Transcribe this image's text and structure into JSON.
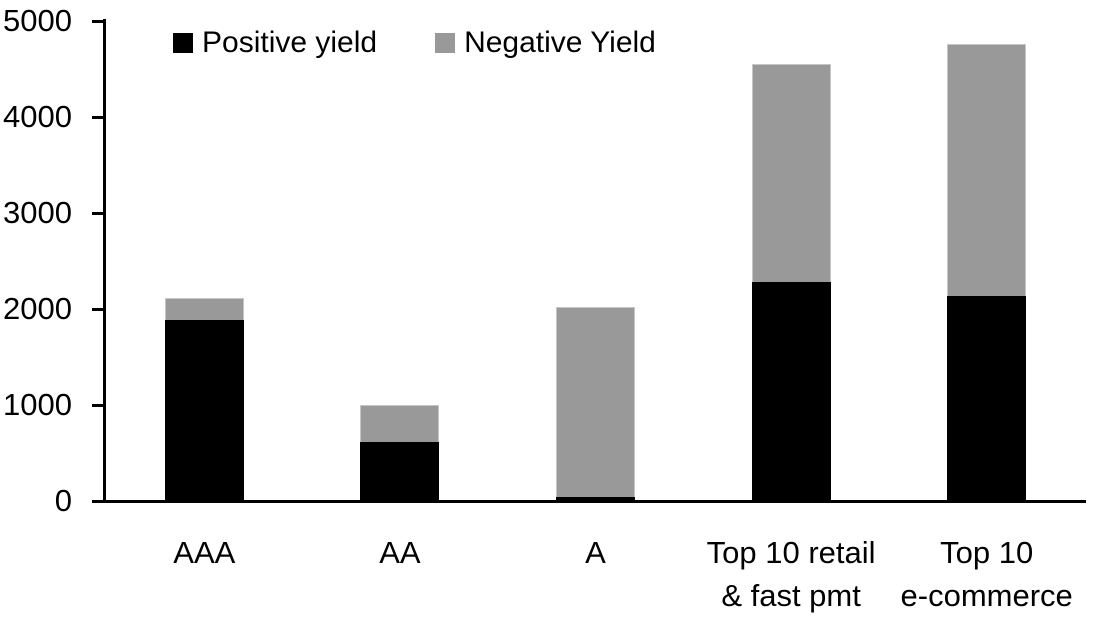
{
  "chart_data": {
    "type": "bar",
    "stacked": true,
    "categories": [
      "AAA",
      "AA",
      "A",
      "Top 10 retail\n& fast pmt",
      "Top 10\ne-commerce"
    ],
    "series": [
      {
        "name": "Positive yield",
        "color": "#000000",
        "values": [
          1890,
          610,
          40,
          2280,
          2140
        ]
      },
      {
        "name": "Negative Yield",
        "color": "#999999",
        "values": [
          220,
          390,
          1980,
          2270,
          2620
        ]
      }
    ],
    "totals": [
      2110,
      1000,
      2020,
      4550,
      4760
    ],
    "ylim": [
      0,
      5000
    ],
    "yticks": [
      0,
      1000,
      2000,
      3000,
      4000,
      5000
    ],
    "ytick_interval": 1000,
    "xlabel": "",
    "ylabel": "",
    "title": "",
    "grid": false,
    "legend_position": "top",
    "axis_color": "#000000",
    "background_color": "#ffffff"
  }
}
